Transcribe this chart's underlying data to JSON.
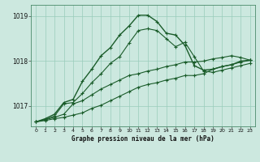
{
  "title": "Graphe pression niveau de la mer (hPa)",
  "background_color": "#cce8df",
  "grid_color": "#99ccbb",
  "line_color": "#1a5c2a",
  "xlim": [
    -0.5,
    23.5
  ],
  "ylim": [
    1016.55,
    1019.25
  ],
  "yticks": [
    1017,
    1018,
    1019
  ],
  "xticks": [
    0,
    1,
    2,
    3,
    4,
    5,
    6,
    7,
    8,
    9,
    10,
    11,
    12,
    13,
    14,
    15,
    16,
    17,
    18,
    19,
    20,
    21,
    22,
    23
  ],
  "series_main": {
    "x": [
      0,
      1,
      2,
      3,
      4,
      5,
      6,
      7,
      8,
      9,
      10,
      11,
      12,
      13,
      14,
      15,
      16,
      17,
      18,
      19,
      20,
      21,
      22,
      23
    ],
    "y": [
      1016.65,
      1016.72,
      1016.82,
      1017.08,
      1017.15,
      1017.55,
      1017.82,
      1018.12,
      1018.3,
      1018.58,
      1018.78,
      1019.02,
      1019.02,
      1018.88,
      1018.62,
      1018.58,
      1018.35,
      1017.9,
      1017.8,
      1017.82,
      1017.88,
      1017.92,
      1018.0,
      1018.02
    ]
  },
  "series2": {
    "x": [
      0,
      1,
      2,
      3,
      4,
      5,
      6,
      7,
      8,
      9,
      10,
      11,
      12,
      13,
      14,
      15,
      16,
      17,
      18,
      19,
      20,
      21,
      22,
      23
    ],
    "y": [
      1016.65,
      1016.7,
      1016.78,
      1017.05,
      1017.08,
      1017.28,
      1017.52,
      1017.72,
      1017.95,
      1018.1,
      1018.4,
      1018.68,
      1018.72,
      1018.68,
      1018.5,
      1018.32,
      1018.42,
      1018.1,
      1017.78,
      1017.75,
      1017.8,
      1017.85,
      1017.9,
      1017.95
    ]
  },
  "series3": {
    "x": [
      0,
      1,
      2,
      3,
      4,
      5,
      6,
      7,
      8,
      9,
      10,
      11,
      12,
      13,
      14,
      15,
      16,
      17,
      18,
      19,
      20,
      21,
      22,
      23
    ],
    "y": [
      1016.65,
      1016.7,
      1016.75,
      1016.82,
      1017.05,
      1017.12,
      1017.25,
      1017.38,
      1017.48,
      1017.58,
      1017.68,
      1017.72,
      1017.78,
      1017.82,
      1017.88,
      1017.92,
      1017.98,
      1017.98,
      1018.0,
      1018.05,
      1018.08,
      1018.12,
      1018.08,
      1018.02
    ]
  },
  "series4": {
    "x": [
      0,
      1,
      2,
      3,
      4,
      5,
      6,
      7,
      8,
      9,
      10,
      11,
      12,
      13,
      14,
      15,
      16,
      17,
      18,
      19,
      20,
      21,
      22,
      23
    ],
    "y": [
      1016.65,
      1016.68,
      1016.72,
      1016.75,
      1016.8,
      1016.85,
      1016.95,
      1017.02,
      1017.12,
      1017.22,
      1017.32,
      1017.42,
      1017.48,
      1017.52,
      1017.58,
      1017.62,
      1017.68,
      1017.68,
      1017.72,
      1017.82,
      1017.88,
      1017.92,
      1017.98,
      1018.02
    ]
  }
}
